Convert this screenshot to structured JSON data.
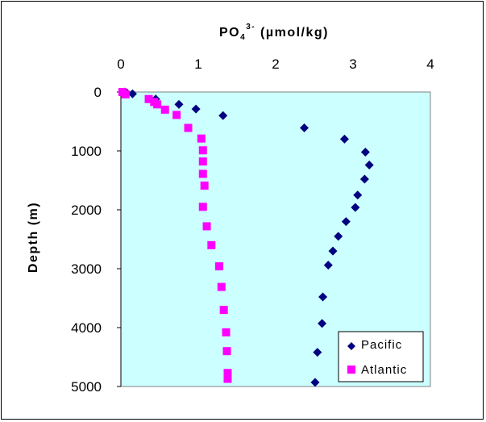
{
  "chart_data": {
    "type": "scatter",
    "title": "",
    "xlabel": {
      "base": "PO",
      "sub": "4",
      "sup": "3-",
      "rest": " (µmol/kg)"
    },
    "ylabel": "Depth (m)",
    "xlim": [
      0,
      4
    ],
    "ylim": [
      0,
      5000
    ],
    "y_inverted": true,
    "x_axis_position": "top",
    "x_ticks": [
      "0",
      "1",
      "2",
      "3",
      "4"
    ],
    "y_ticks": [
      "0",
      "1000",
      "2000",
      "3000",
      "4000",
      "5000"
    ],
    "plot_background": "#ccffff",
    "grid": false,
    "legend_position": "bottom-right",
    "series": [
      {
        "name": "Pacific",
        "marker": "diamond",
        "color": "#000080",
        "points": [
          [
            0.05,
            0
          ],
          [
            0.08,
            20
          ],
          [
            0.15,
            30
          ],
          [
            0.45,
            120
          ],
          [
            0.75,
            210
          ],
          [
            0.97,
            290
          ],
          [
            1.32,
            400
          ],
          [
            2.37,
            610
          ],
          [
            2.89,
            800
          ],
          [
            3.16,
            1020
          ],
          [
            3.21,
            1240
          ],
          [
            3.15,
            1480
          ],
          [
            3.06,
            1750
          ],
          [
            3.03,
            1960
          ],
          [
            2.91,
            2200
          ],
          [
            2.81,
            2450
          ],
          [
            2.74,
            2700
          ],
          [
            2.68,
            2940
          ],
          [
            2.61,
            3480
          ],
          [
            2.6,
            3930
          ],
          [
            2.54,
            4420
          ],
          [
            2.51,
            4930
          ]
        ]
      },
      {
        "name": "Atlantic",
        "marker": "square",
        "color": "#ff00ff",
        "points": [
          [
            0.02,
            0
          ],
          [
            0.06,
            40
          ],
          [
            0.36,
            120
          ],
          [
            0.43,
            170
          ],
          [
            0.47,
            210
          ],
          [
            0.57,
            300
          ],
          [
            0.72,
            390
          ],
          [
            0.87,
            610
          ],
          [
            1.04,
            790
          ],
          [
            1.06,
            990
          ],
          [
            1.06,
            1180
          ],
          [
            1.06,
            1390
          ],
          [
            1.08,
            1590
          ],
          [
            1.06,
            1950
          ],
          [
            1.11,
            2280
          ],
          [
            1.17,
            2600
          ],
          [
            1.27,
            2960
          ],
          [
            1.3,
            3310
          ],
          [
            1.33,
            3700
          ],
          [
            1.36,
            4080
          ],
          [
            1.37,
            4400
          ],
          [
            1.38,
            4770
          ],
          [
            1.38,
            4870
          ]
        ]
      }
    ]
  }
}
